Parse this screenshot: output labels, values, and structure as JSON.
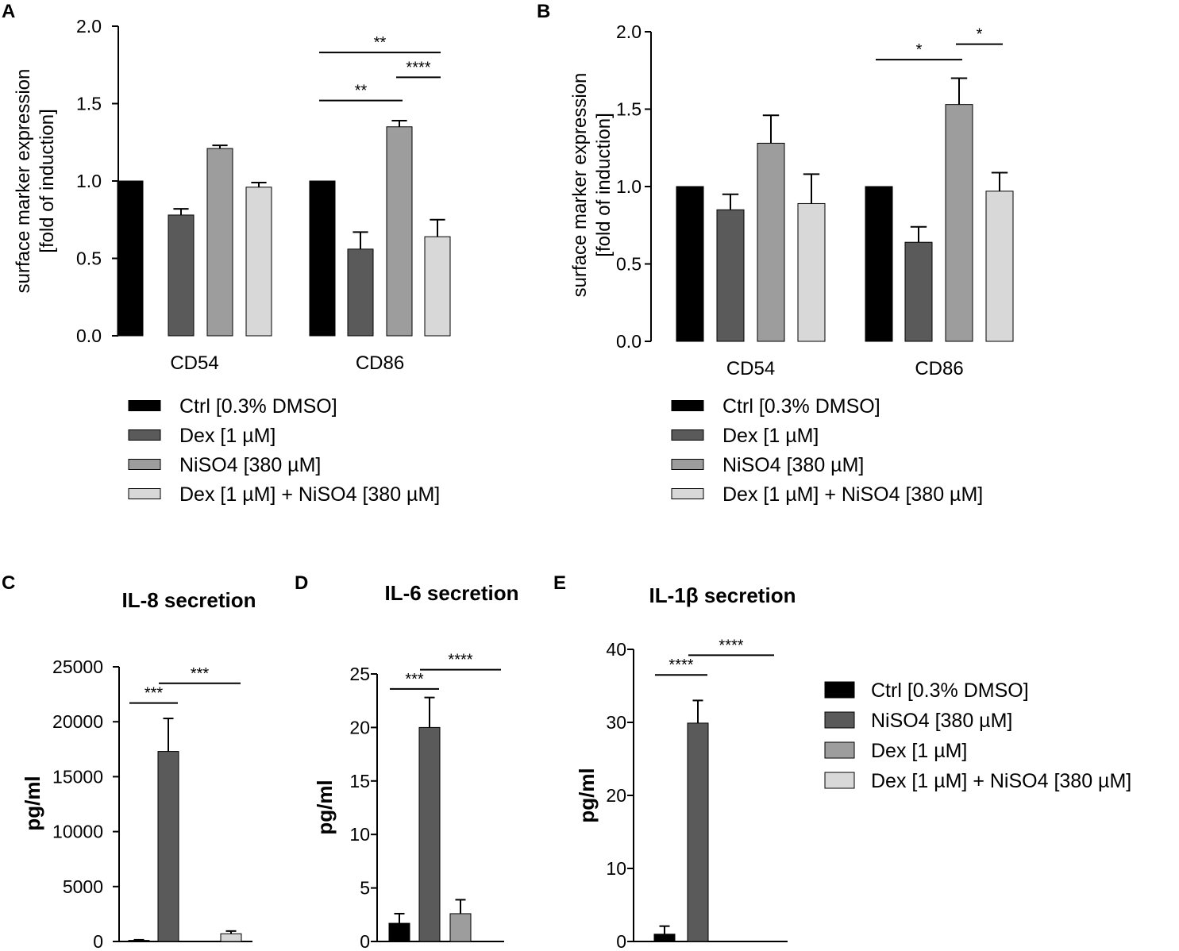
{
  "chart_data": [
    {
      "panel": "A",
      "type": "bar",
      "title": "",
      "ylabel": [
        "surface marker expression",
        "[fold of induction]"
      ],
      "ylim": [
        0,
        2.0
      ],
      "yticks": [
        "0.0",
        "0.5",
        "1.0",
        "1.5",
        "2.0"
      ],
      "categories": [
        "CD54",
        "CD86"
      ],
      "series": [
        {
          "name": "Ctrl [0.3% DMSO]",
          "color": "#000000",
          "values": [
            1.0,
            1.0
          ],
          "errors": [
            0,
            0
          ]
        },
        {
          "name": "Dex [1 µM]",
          "color": "#5a5a5a",
          "values": [
            0.78,
            0.56
          ],
          "errors": [
            0.04,
            0.11
          ]
        },
        {
          "name": "NiSO4 [380 µM]",
          "color": "#9d9d9d",
          "values": [
            1.21,
            1.35
          ],
          "errors": [
            0.02,
            0.04
          ]
        },
        {
          "name": "Dex [1 µM] + NiSO4 [380 µM]",
          "color": "#d8d8d8",
          "values": [
            0.96,
            0.64
          ],
          "errors": [
            0.03,
            0.11
          ]
        }
      ],
      "significance": [
        {
          "category": 1,
          "from": 0,
          "to": 3,
          "y": 1.83,
          "label": "**"
        },
        {
          "category": 1,
          "from": 2,
          "to": 3,
          "y": 1.67,
          "label": "****"
        },
        {
          "category": 1,
          "from": 0,
          "to": 2,
          "y": 1.52,
          "label": "**"
        }
      ]
    },
    {
      "panel": "B",
      "type": "bar",
      "title": "",
      "ylabel": [
        "surface marker expression",
        "[fold of induction]"
      ],
      "ylim": [
        0,
        2.0
      ],
      "yticks": [
        "0.0",
        "0.5",
        "1.0",
        "1.5",
        "2.0"
      ],
      "categories": [
        "CD54",
        "CD86"
      ],
      "series": [
        {
          "name": "Ctrl [0.3% DMSO]",
          "color": "#000000",
          "values": [
            1.0,
            1.0
          ],
          "errors": [
            0,
            0
          ]
        },
        {
          "name": "Dex [1 µM]",
          "color": "#5a5a5a",
          "values": [
            0.85,
            0.64
          ],
          "errors": [
            0.1,
            0.1
          ]
        },
        {
          "name": "NiSO4 [380 µM]",
          "color": "#9d9d9d",
          "values": [
            1.28,
            1.53
          ],
          "errors": [
            0.18,
            0.17
          ]
        },
        {
          "name": "Dex [1 µM] + NiSO4 [380 µM]",
          "color": "#d8d8d8",
          "values": [
            0.89,
            0.97
          ],
          "errors": [
            0.19,
            0.12
          ]
        }
      ],
      "significance": [
        {
          "category": 1,
          "from": 0,
          "to": 2,
          "y": 1.82,
          "label": "*"
        },
        {
          "category": 1,
          "from": 2,
          "to": 3,
          "y": 1.92,
          "label": "*"
        }
      ]
    },
    {
      "panel": "C",
      "type": "bar",
      "title": "IL-8 secretion",
      "ylabel": "pg/ml",
      "ylim": [
        0,
        25000
      ],
      "yticks": [
        "0",
        "5000",
        "10000",
        "15000",
        "20000",
        "25000"
      ],
      "categories": [
        "Ctrl [0.3% DMSO]",
        "NiSO4 [380 µM]",
        "Dex [1 µM]",
        "Dex [1 µM] + NiSO4 [380 µM]"
      ],
      "colors": [
        "#000000",
        "#5a5a5a",
        "#9d9d9d",
        "#d8d8d8"
      ],
      "values": [
        100,
        17300,
        0,
        700
      ],
      "errors": [
        50,
        3000,
        0,
        250
      ],
      "significance": [
        {
          "from": 0,
          "to": 1,
          "y": 21700,
          "label": "***"
        },
        {
          "from": 1,
          "to": 3,
          "y": 23500,
          "label": "***"
        }
      ]
    },
    {
      "panel": "D",
      "type": "bar",
      "title": "IL-6 secretion",
      "ylabel": "pg/ml",
      "ylim": [
        0,
        25
      ],
      "yticks": [
        "0",
        "5",
        "10",
        "15",
        "20",
        "25"
      ],
      "categories": [
        "Ctrl [0.3% DMSO]",
        "NiSO4 [380 µM]",
        "Dex [1 µM]",
        "Dex [1 µM] + NiSO4 [380 µM]"
      ],
      "colors": [
        "#000000",
        "#5a5a5a",
        "#9d9d9d",
        "#d8d8d8"
      ],
      "values": [
        1.7,
        20.0,
        2.6,
        0
      ],
      "errors": [
        0.9,
        2.8,
        1.3,
        0
      ],
      "significance": [
        {
          "from": 0,
          "to": 1,
          "y": 23.6,
          "label": "***"
        },
        {
          "from": 1,
          "to": 3,
          "y": 25.4,
          "label": "****"
        }
      ]
    },
    {
      "panel": "E",
      "type": "bar",
      "title": "IL-1β secretion",
      "ylabel": "pg/ml",
      "ylim": [
        0,
        40
      ],
      "yticks": [
        "0",
        "10",
        "20",
        "30",
        "40"
      ],
      "categories": [
        "Ctrl [0.3% DMSO]",
        "NiSO4 [380 µM]",
        "Dex [1 µM]",
        "Dex [1 µM] + NiSO4 [380 µM]"
      ],
      "colors": [
        "#000000",
        "#5a5a5a",
        "#9d9d9d",
        "#d8d8d8"
      ],
      "values": [
        1.0,
        29.9,
        0,
        0
      ],
      "errors": [
        1.1,
        3.1,
        0,
        0
      ],
      "significance": [
        {
          "from": 0,
          "to": 1,
          "y": 36.5,
          "label": "****"
        },
        {
          "from": 1,
          "to": 3,
          "y": 39.2,
          "label": "****"
        }
      ]
    }
  ],
  "legend_ab": [
    {
      "label": "Ctrl [0.3% DMSO]",
      "color": "#000000"
    },
    {
      "label": "Dex [1 µM]",
      "color": "#5a5a5a"
    },
    {
      "label": "NiSO4 [380 µM]",
      "color": "#9d9d9d"
    },
    {
      "label": "Dex [1 µM] + NiSO4 [380 µM]",
      "color": "#d8d8d8"
    }
  ],
  "legend_cde": [
    {
      "label": "Ctrl [0.3% DMSO]",
      "color": "#000000"
    },
    {
      "label": "NiSO4 [380 µM]",
      "color": "#5a5a5a"
    },
    {
      "label": "Dex [1 µM]",
      "color": "#9d9d9d"
    },
    {
      "label": "Dex [1 µM] + NiSO4 [380 µM]",
      "color": "#d8d8d8"
    }
  ]
}
